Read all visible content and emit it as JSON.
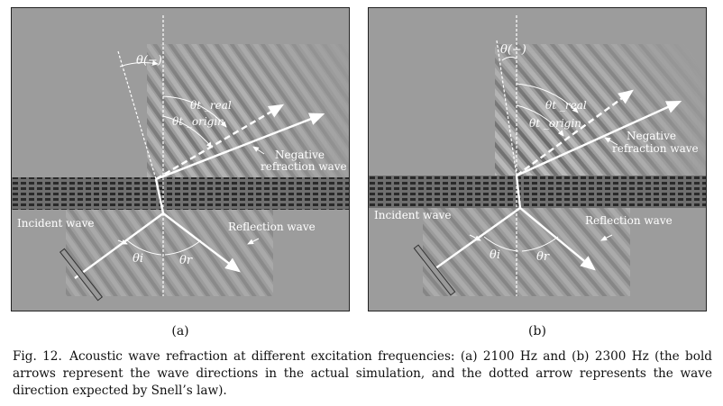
{
  "figure": {
    "caption_number": "Fig. 12.",
    "caption_text": "Acoustic wave refraction at different excitation frequencies: (a) 2100 Hz and (b) 2300 Hz (the bold arrows represent the wave directions in the actual simulation, and the dotted arrow represents the wave direction expected by Snell’s law).",
    "panels": [
      {
        "sublabel": "(a)",
        "labels": {
          "theta_neg": "θ(−)",
          "theta_t_real": "θt _real",
          "theta_t_origin": "θt _origin",
          "negative_refraction": [
            "Negative",
            "refraction wave"
          ],
          "incident": "Incident wave",
          "reflection": "Reflection wave",
          "theta_i": "θi",
          "theta_r": "θr"
        }
      },
      {
        "sublabel": "(b)",
        "labels": {
          "theta_neg": "θ(−)",
          "theta_t_real": "θt _real",
          "theta_t_origin": "θt _origin",
          "negative_refraction": [
            "Negative",
            "refraction wave"
          ],
          "incident": "Incident wave",
          "reflection": "Reflection wave",
          "theta_i": "θi",
          "theta_r": "θr"
        }
      }
    ]
  }
}
